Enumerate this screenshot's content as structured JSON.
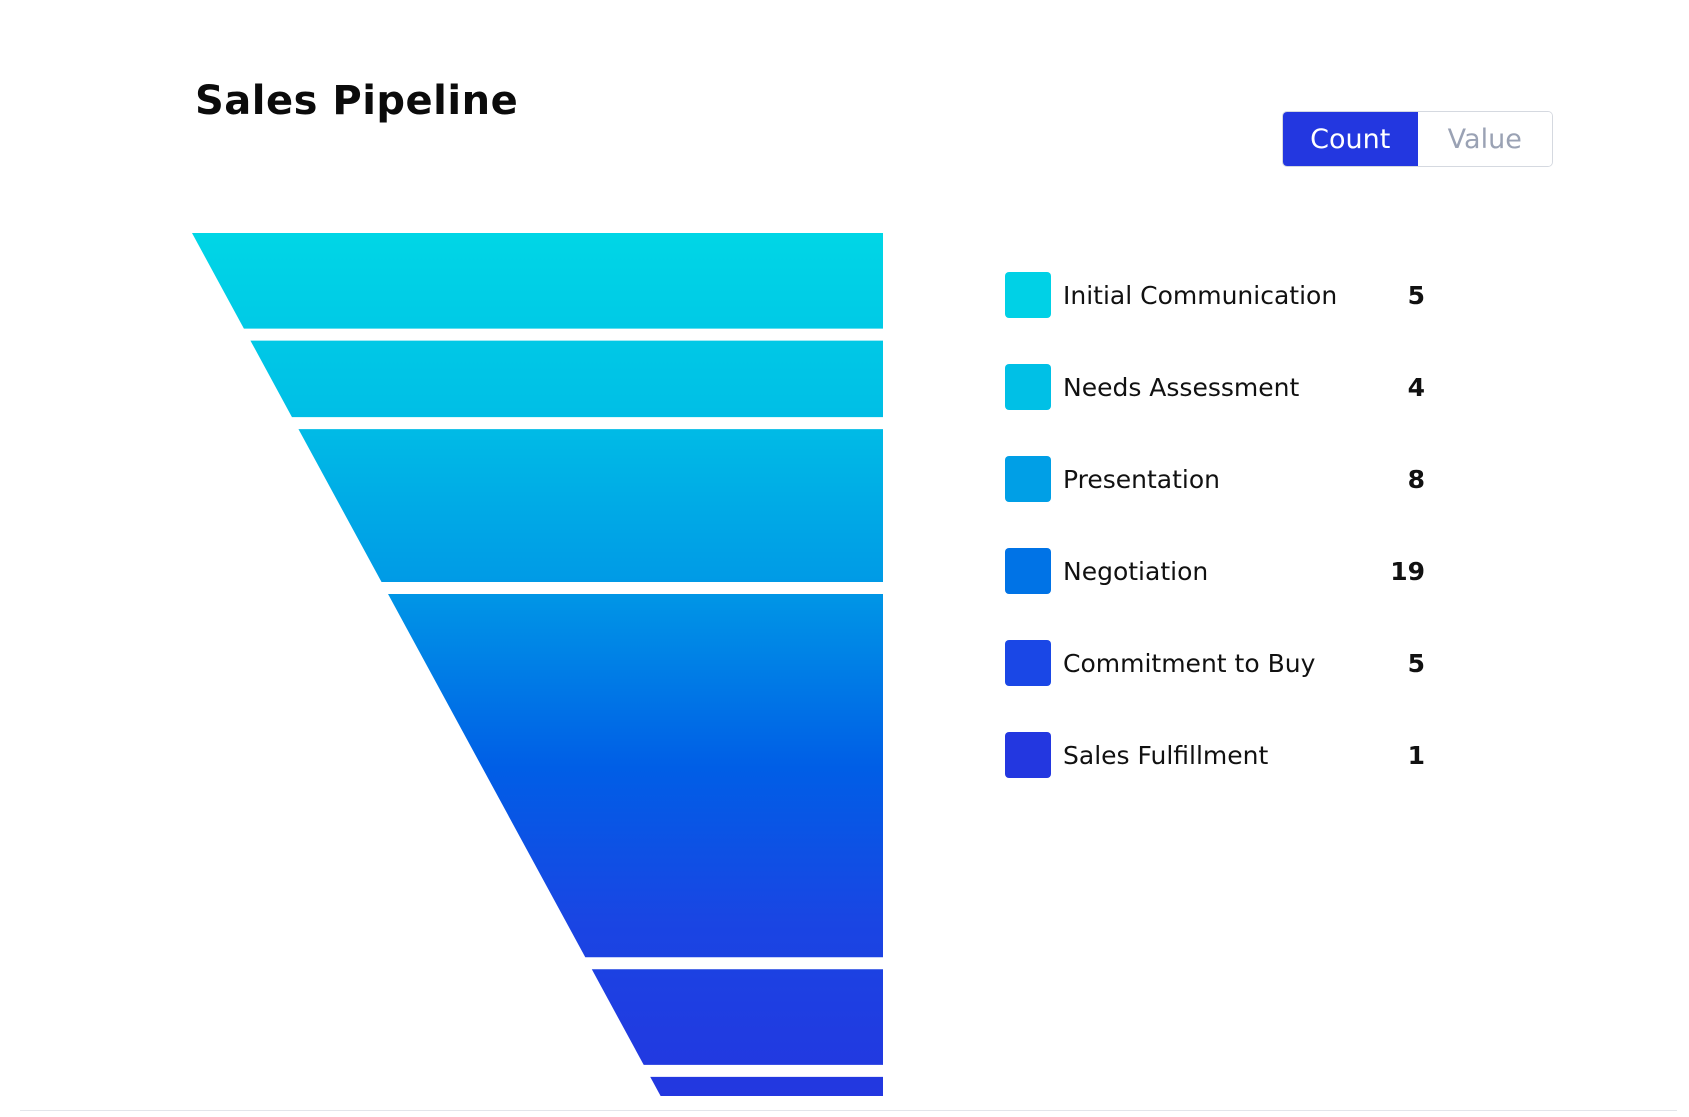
{
  "title": "Sales Pipeline",
  "toggle": {
    "options": [
      "Count",
      "Value"
    ],
    "selected": "Count"
  },
  "colors": {
    "accent": "#2337e0",
    "stages": [
      "#00d1e6",
      "#00c0e6",
      "#009fe6",
      "#0073e6",
      "#1a47e6",
      "#2337e0"
    ]
  },
  "chart_data": {
    "type": "funnel",
    "title": "Sales Pipeline",
    "categories": [
      "Initial Communication",
      "Needs Assessment",
      "Presentation",
      "Negotiation",
      "Commitment to Buy",
      "Sales Fulfillment"
    ],
    "values": [
      5,
      4,
      8,
      19,
      5,
      1
    ],
    "legend": "right"
  }
}
